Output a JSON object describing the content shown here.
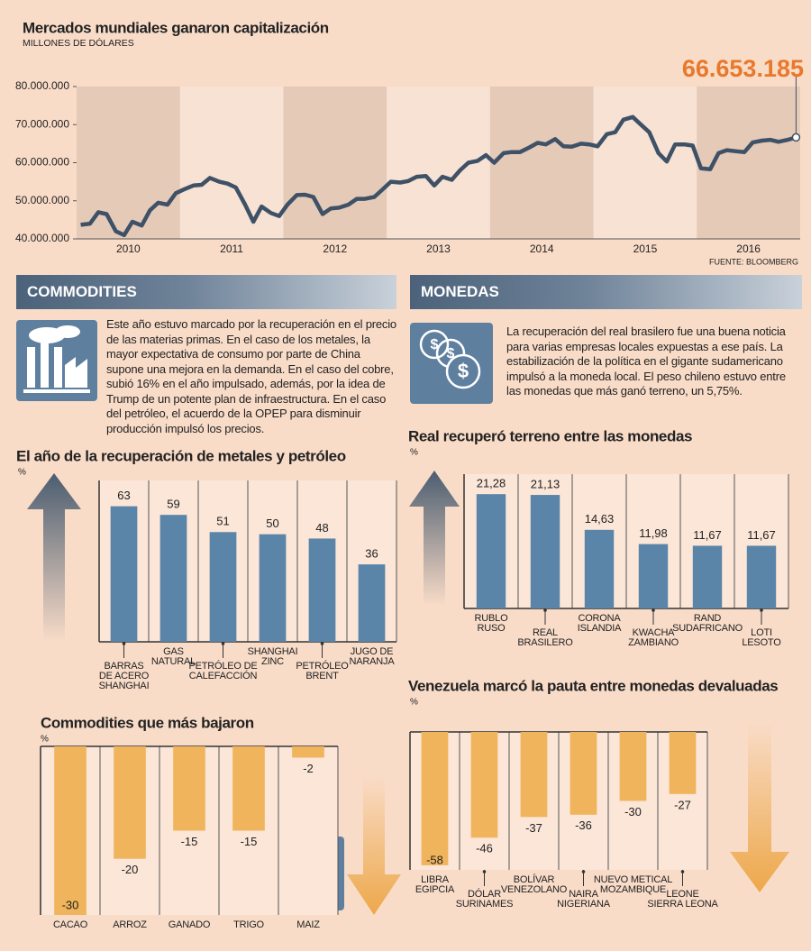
{
  "chart_data": [
    {
      "type": "line",
      "title": "Mercados mundiales ganaron capitalización",
      "subtitle": "MILLONES DE DÓLARES",
      "source": "FUENTE: BLOOMBERG",
      "annotation": "66.653.185",
      "x": [
        2010.04,
        2010.13,
        2010.21,
        2010.29,
        2010.38,
        2010.46,
        2010.54,
        2010.63,
        2010.71,
        2010.79,
        2010.88,
        2010.96,
        2011.04,
        2011.13,
        2011.21,
        2011.29,
        2011.38,
        2011.46,
        2011.54,
        2011.63,
        2011.71,
        2011.79,
        2011.88,
        2011.96,
        2012.04,
        2012.13,
        2012.21,
        2012.29,
        2012.38,
        2012.46,
        2012.54,
        2012.63,
        2012.71,
        2012.79,
        2012.88,
        2012.96,
        2013.04,
        2013.13,
        2013.21,
        2013.29,
        2013.38,
        2013.46,
        2013.54,
        2013.63,
        2013.71,
        2013.79,
        2013.88,
        2013.96,
        2014.04,
        2014.13,
        2014.21,
        2014.29,
        2014.38,
        2014.46,
        2014.54,
        2014.63,
        2014.71,
        2014.79,
        2014.88,
        2014.96,
        2015.04,
        2015.13,
        2015.21,
        2015.29,
        2015.38,
        2015.46,
        2015.54,
        2015.63,
        2015.71,
        2015.79,
        2015.88,
        2015.96,
        2016.04,
        2016.13,
        2016.21,
        2016.29,
        2016.38,
        2016.46,
        2016.54,
        2016.63,
        2016.71,
        2016.79,
        2016.88,
        2016.96
      ],
      "values": [
        43700000,
        44000000,
        47000000,
        46500000,
        42000000,
        41000000,
        44500000,
        43500000,
        47500000,
        49500000,
        49000000,
        52000000,
        53000000,
        54000000,
        54200000,
        56000000,
        55000000,
        54500000,
        53500000,
        49000000,
        44500000,
        48500000,
        46800000,
        46000000,
        49000000,
        51500000,
        51600000,
        51000000,
        46500000,
        48000000,
        48200000,
        49000000,
        50500000,
        50500000,
        51000000,
        53000000,
        55000000,
        54800000,
        55200000,
        56300000,
        56500000,
        54000000,
        56300000,
        55500000,
        58000000,
        60000000,
        60500000,
        62000000,
        60000000,
        62500000,
        62800000,
        62800000,
        64000000,
        65200000,
        64800000,
        66200000,
        64300000,
        64200000,
        65000000,
        64800000,
        64300000,
        67500000,
        68000000,
        71300000,
        72000000,
        70000000,
        68000000,
        62500000,
        60300000,
        64800000,
        64800000,
        64500000,
        58500000,
        58300000,
        62500000,
        63300000,
        63000000,
        62800000,
        65300000,
        65800000,
        66000000,
        65500000,
        66000000,
        66653185
      ],
      "color": "#3e5166",
      "xlim": [
        2010,
        2017
      ],
      "xticks": [
        {
          "value": 2010.5,
          "label": "2010"
        },
        {
          "value": 2011.5,
          "label": "2011"
        },
        {
          "value": 2012.5,
          "label": "2012"
        },
        {
          "value": 2013.5,
          "label": "2013"
        },
        {
          "value": 2014.5,
          "label": "2014"
        },
        {
          "value": 2015.5,
          "label": "2015"
        },
        {
          "value": 2016.5,
          "label": "2016"
        }
      ],
      "ylim": [
        40000000,
        80000000
      ],
      "yticks": [
        {
          "value": 40000000,
          "label": "40.000.000"
        },
        {
          "value": 50000000,
          "label": "50.000.000"
        },
        {
          "value": 60000000,
          "label": "60.000.000"
        },
        {
          "value": 70000000,
          "label": "70.000.000"
        },
        {
          "value": 80000000,
          "label": "80.000.000"
        }
      ]
    },
    {
      "type": "bar",
      "title": "El año de la recuperación de metales y petróleo",
      "ylabel": "%",
      "categories": [
        "BARRAS\nDE ACERO\nSHANGHAI",
        "GAS\nNATURAL",
        "PETRÓLEO DE\nCALEFACCIÓN",
        "SHANGHAI\nZINC",
        "PETRÓLEO\nBRENT",
        "JUGO DE\nNARANJA"
      ],
      "values": [
        63,
        59,
        51,
        50,
        48,
        36
      ],
      "color": "#5a84a8",
      "ylim": [
        0,
        75
      ]
    },
    {
      "type": "bar",
      "title": "Commodities que más bajaron",
      "ylabel": "%",
      "categories": [
        "CACAO",
        "ARROZ",
        "GANADO",
        "TRIGO",
        "MAIZ"
      ],
      "values": [
        -30,
        -20,
        -15,
        -15,
        -2
      ],
      "color": "#f0b45c",
      "ylim": [
        -30,
        0
      ]
    },
    {
      "type": "bar",
      "title": "Real recuperó terreno entre las monedas",
      "ylabel": "%",
      "categories": [
        "RUBLO\nRUSO",
        "REAL\nBRASILERO",
        "CORONA\nISLANDIA",
        "KWACHA\nZAMBIANO",
        "RAND\nSUDAFRICANO",
        "LOTI\nLESOTO"
      ],
      "values": [
        21.28,
        21.13,
        14.63,
        11.98,
        11.67,
        11.67
      ],
      "value_labels": [
        "21,28",
        "21,13",
        "14,63",
        "11,98",
        "11,67",
        "11,67"
      ],
      "color": "#5a84a8",
      "ylim": [
        0,
        25
      ]
    },
    {
      "type": "bar",
      "title": "Venezuela marcó la pauta entre monedas devaluadas",
      "ylabel": "%",
      "categories": [
        "LIBRA\nEGIPCIA",
        "DÓLAR\nSURINAMES",
        "BOLÍVAR\nVENEZOLANO",
        "NAIRA\nNIGERIANA",
        "NUEVO METICAL\nMOZAMBIQUE",
        "LEONE\nSIERRA LEONA"
      ],
      "values": [
        -58,
        -46,
        -37,
        -36,
        -30,
        -27
      ],
      "color": "#f0b45c",
      "ylim": [
        -60,
        0
      ]
    }
  ],
  "commodities": {
    "heading": "COMMODITIES",
    "text": "Este año estuvo marcado por la recuperación en el precio de las materias primas. En el caso de los metales, la mayor expectativa de consumo por parte de China supone una mejora en la demanda. En el caso del cobre, subió 16% en el año impulsado, además, por la idea de Trump de un potente plan de infraestructura. En el caso del petróleo, el acuerdo de la OPEP para disminuir producción impulsó los precios."
  },
  "monedas": {
    "heading": "MONEDAS",
    "text": "La recuperación del real brasilero fue una buena noticia para varias empresas locales expuestas a ese país. La estabilización de la política en el gigante sudamericano impulsó a la moneda local. El peso chileno estuvo entre las monedas que más ganó terreno, un 5,75%."
  }
}
